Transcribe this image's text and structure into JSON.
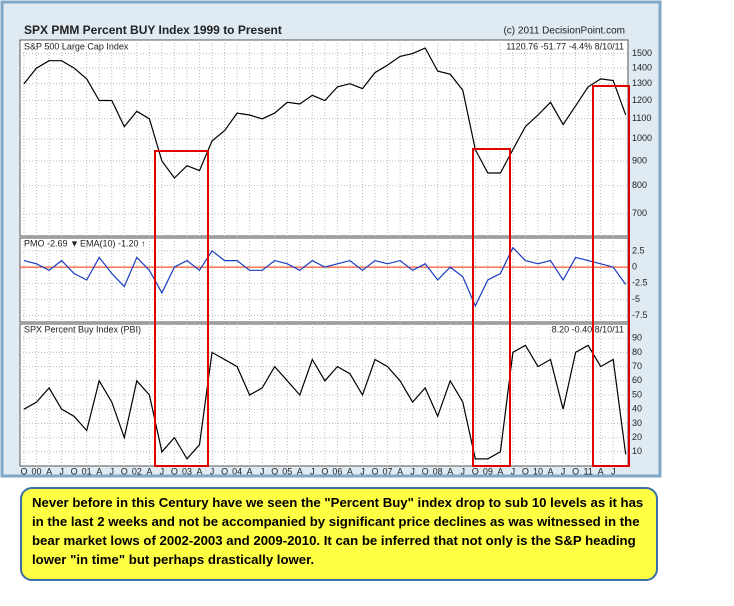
{
  "chart_data": [
    {
      "type": "line",
      "title": "SPX PMM Percent BUY Index 1999 to Present",
      "credit": "(c) 2011 DecisionPoint.com",
      "subtitle": "S&P 500 Large Cap Index",
      "last_label": "1120.76 -51.77 -4.4% 8/10/11",
      "log_scale": true,
      "grid": true,
      "categories": [
        "O",
        "00",
        "A",
        "J",
        "O",
        "01",
        "A",
        "J",
        "O",
        "02",
        "A",
        "J",
        "O",
        "03",
        "A",
        "J",
        "O",
        "04",
        "A",
        "J",
        "O",
        "05",
        "A",
        "J",
        "O",
        "06",
        "A",
        "J",
        "O",
        "07",
        "A",
        "J",
        "O",
        "08",
        "A",
        "J",
        "O",
        "09",
        "A",
        "J",
        "O",
        "10",
        "A",
        "J",
        "O",
        "11",
        "A",
        "J",
        null
      ],
      "series": [
        {
          "name": "S&P 500",
          "color": "#000000",
          "values": [
            1300,
            1400,
            1450,
            1450,
            1400,
            1330,
            1200,
            1200,
            1060,
            1140,
            1100,
            900,
            830,
            880,
            860,
            990,
            1040,
            1130,
            1120,
            1100,
            1130,
            1190,
            1180,
            1230,
            1200,
            1280,
            1300,
            1270,
            1370,
            1420,
            1480,
            1500,
            1540,
            1380,
            1360,
            1260,
            950,
            850,
            850,
            950,
            1060,
            1120,
            1190,
            1070,
            1170,
            1280,
            1330,
            1320,
            1120.76
          ]
        }
      ],
      "ylim": [
        630,
        1600
      ],
      "yticks": [
        700,
        800,
        900,
        1000,
        1100,
        1200,
        1300,
        1400,
        1500
      ]
    },
    {
      "type": "line",
      "grid": true,
      "zero_line": true,
      "zero_line_color": "#ff3300",
      "ema_label": "EMA(10) -1.20 ↑",
      "series": [
        {
          "name": "PMO -2.69 ▼",
          "color": "#1a3cc0",
          "values": [
            1,
            0.5,
            -0.5,
            1,
            -1,
            -2,
            1.5,
            -1,
            -3,
            1.5,
            -0.5,
            -4,
            0,
            1,
            -0.5,
            2.5,
            1,
            1,
            -0.5,
            -0.5,
            1,
            0.5,
            -0.5,
            1,
            0,
            0.5,
            1,
            -0.5,
            1,
            0.5,
            1,
            -0.5,
            0.5,
            -2,
            0,
            -1.5,
            -6,
            -2,
            -1,
            3,
            1,
            0.5,
            1,
            -2,
            1.5,
            1,
            0.5,
            0,
            -2.69
          ]
        }
      ],
      "ylim": [
        -8.5,
        4.5
      ],
      "yticks": [
        2.5,
        0,
        -2.5,
        -5,
        -7.5
      ]
    },
    {
      "type": "line",
      "title": "SPX Percent Buy Index (PBI)",
      "last_label": "8.20 -0.40 8/10/11",
      "grid": true,
      "series": [
        {
          "name": "PBI",
          "color": "#000000",
          "values": [
            40,
            45,
            55,
            40,
            35,
            25,
            60,
            45,
            20,
            60,
            50,
            10,
            20,
            5,
            15,
            80,
            75,
            70,
            50,
            55,
            70,
            60,
            50,
            75,
            60,
            70,
            65,
            50,
            75,
            70,
            60,
            45,
            55,
            35,
            60,
            45,
            5,
            5,
            10,
            80,
            85,
            70,
            75,
            40,
            80,
            85,
            70,
            75,
            8.2
          ]
        }
      ],
      "ylim": [
        0,
        100
      ],
      "yticks": [
        10,
        20,
        30,
        40,
        50,
        60,
        70,
        80,
        90
      ]
    }
  ],
  "caption": "Never before in this  Century have we seen the \"Percent Buy\" index drop to sub 10 levels as it has in the last 2 weeks and not be accompanied by significant price declines as was witnessed in the bear market lows of 2002-2003 and 2009-2010.  It can be inferred that not only is the S&P heading lower \"in time\" but perhaps drastically lower."
}
